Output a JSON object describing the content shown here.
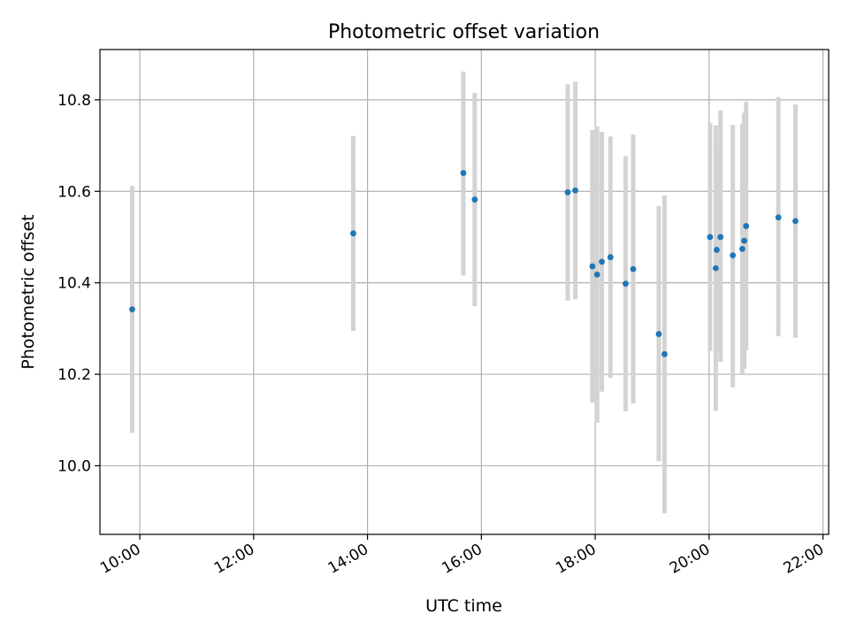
{
  "chart_data": {
    "type": "scatter",
    "title": "Photometric offset variation",
    "xlabel": "UTC time",
    "ylabel": "Photometric offset",
    "xlim": [
      "09:18",
      "22:06"
    ],
    "ylim": [
      9.85,
      10.91
    ],
    "x_ticks": [
      "10:00",
      "12:00",
      "14:00",
      "16:00",
      "18:00",
      "20:00",
      "22:00"
    ],
    "y_ticks": [
      "10.0",
      "10.2",
      "10.4",
      "10.6",
      "10.8"
    ],
    "grid": true,
    "errorbar_color": "#d3d3d3",
    "marker_color": "#1f77b4",
    "points": [
      {
        "x": "09:52",
        "y": 10.342,
        "err_low": 10.072,
        "err_high": 10.612
      },
      {
        "x": "13:45",
        "y": 10.508,
        "err_low": 10.295,
        "err_high": 10.721
      },
      {
        "x": "15:41",
        "y": 10.64,
        "err_low": 10.416,
        "err_high": 10.862
      },
      {
        "x": "15:53",
        "y": 10.582,
        "err_low": 10.349,
        "err_high": 10.815
      },
      {
        "x": "17:31",
        "y": 10.598,
        "err_low": 10.361,
        "err_high": 10.834
      },
      {
        "x": "17:39",
        "y": 10.602,
        "err_low": 10.364,
        "err_high": 10.84
      },
      {
        "x": "17:57",
        "y": 10.436,
        "err_low": 10.138,
        "err_high": 10.734
      },
      {
        "x": "18:02",
        "y": 10.418,
        "err_low": 10.094,
        "err_high": 10.742
      },
      {
        "x": "18:07",
        "y": 10.446,
        "err_low": 10.162,
        "err_high": 10.73
      },
      {
        "x": "18:16",
        "y": 10.456,
        "err_low": 10.192,
        "err_high": 10.72
      },
      {
        "x": "18:32",
        "y": 10.398,
        "err_low": 10.119,
        "err_high": 10.677
      },
      {
        "x": "18:40",
        "y": 10.43,
        "err_low": 10.136,
        "err_high": 10.724
      },
      {
        "x": "19:07",
        "y": 10.288,
        "err_low": 10.01,
        "err_high": 10.568
      },
      {
        "x": "19:13",
        "y": 10.244,
        "err_low": 9.896,
        "err_high": 10.591
      },
      {
        "x": "20:01",
        "y": 10.5,
        "err_low": 10.251,
        "err_high": 10.749
      },
      {
        "x": "20:07",
        "y": 10.432,
        "err_low": 10.12,
        "err_high": 10.744
      },
      {
        "x": "20:08",
        "y": 10.472,
        "err_low": 10.249,
        "err_high": 10.694
      },
      {
        "x": "20:12",
        "y": 10.5,
        "err_low": 10.227,
        "err_high": 10.777
      },
      {
        "x": "20:25",
        "y": 10.46,
        "err_low": 10.171,
        "err_high": 10.745
      },
      {
        "x": "20:35",
        "y": 10.474,
        "err_low": 10.2,
        "err_high": 10.748
      },
      {
        "x": "20:37",
        "y": 10.492,
        "err_low": 10.212,
        "err_high": 10.772
      },
      {
        "x": "20:39",
        "y": 10.524,
        "err_low": 10.252,
        "err_high": 10.796
      },
      {
        "x": "21:13",
        "y": 10.543,
        "err_low": 10.283,
        "err_high": 10.806
      },
      {
        "x": "21:31",
        "y": 10.535,
        "err_low": 10.28,
        "err_high": 10.79
      }
    ]
  }
}
